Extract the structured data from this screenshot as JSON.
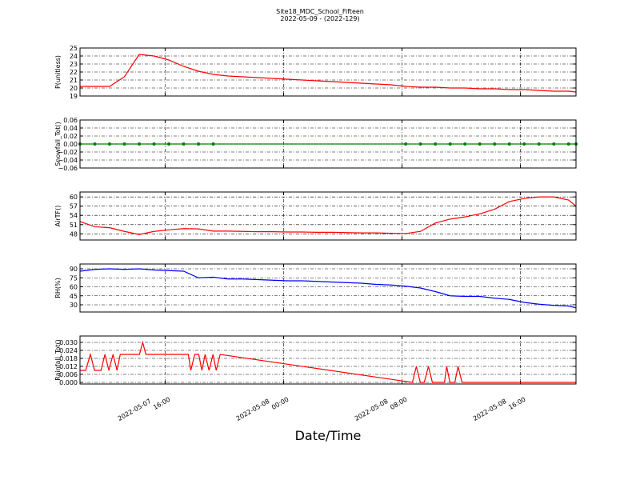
{
  "title": "Site18_MDC_School_Fifteen",
  "subtitle": "2022-05-09 - (2022-129)",
  "chart_data": [
    {
      "type": "line",
      "ylabel": "P(unitless)",
      "x": [
        "2022-05-07 10:15",
        "2022-05-07 11:15",
        "2022-05-07 12:15",
        "2022-05-07 13:15",
        "2022-05-07 14:15",
        "2022-05-07 15:15",
        "2022-05-07 16:15",
        "2022-05-07 17:15",
        "2022-05-07 18:15",
        "2022-05-07 19:15",
        "2022-05-07 20:15",
        "2022-05-07 21:15",
        "2022-05-07 22:15",
        "2022-05-07 23:15",
        "2022-05-08 00:15",
        "2022-05-08 01:15",
        "2022-05-08 02:15",
        "2022-05-08 03:15",
        "2022-05-08 04:15",
        "2022-05-08 05:15",
        "2022-05-08 06:15",
        "2022-05-08 07:15",
        "2022-05-08 08:15",
        "2022-05-08 09:15",
        "2022-05-08 10:15",
        "2022-05-08 11:15",
        "2022-05-08 12:15",
        "2022-05-08 13:15",
        "2022-05-08 14:15",
        "2022-05-08 15:15",
        "2022-05-08 16:15",
        "2022-05-08 17:15",
        "2022-05-08 18:15",
        "2022-05-08 19:15",
        "2022-05-08 19:45"
      ],
      "series": [
        {
          "color": "#ff0000",
          "values": [
            20.2,
            20.2,
            20.2,
            21.4,
            24.2,
            24.0,
            23.5,
            22.7,
            22.1,
            21.7,
            21.5,
            21.4,
            21.3,
            21.2,
            21.1,
            21.0,
            20.9,
            20.8,
            20.7,
            20.6,
            20.5,
            20.4,
            20.2,
            20.1,
            20.1,
            20.0,
            20.0,
            19.9,
            19.9,
            19.8,
            19.8,
            19.7,
            19.6,
            19.6,
            19.5
          ]
        }
      ],
      "xlim": [
        "2022-05-07 10:15",
        "2022-05-08 19:45"
      ],
      "xticks": [
        "2022-05-07 16:00",
        "2022-05-08 00:00",
        "2022-05-08 08:00",
        "2022-05-08 16:00"
      ],
      "ylim": [
        19,
        25
      ],
      "yticks": [
        19,
        20,
        21,
        22,
        23,
        24,
        25
      ],
      "grid": true
    },
    {
      "type": "line",
      "ylabel": "Snowfall_Tot()",
      "x": [
        "2022-05-07 10:15",
        "2022-05-07 11:15",
        "2022-05-07 12:15",
        "2022-05-07 13:15",
        "2022-05-07 14:15",
        "2022-05-07 15:15",
        "2022-05-07 16:15",
        "2022-05-07 17:15",
        "2022-05-07 18:15",
        "2022-05-07 19:15",
        "2022-05-08 08:15",
        "2022-05-08 09:15",
        "2022-05-08 10:15",
        "2022-05-08 11:15",
        "2022-05-08 12:15",
        "2022-05-08 13:15",
        "2022-05-08 14:15",
        "2022-05-08 15:15",
        "2022-05-08 16:15",
        "2022-05-08 17:15",
        "2022-05-08 18:15",
        "2022-05-08 19:15",
        "2022-05-08 19:45"
      ],
      "series": [
        {
          "color": "#008000",
          "marker": true,
          "values": [
            0,
            0,
            0,
            0,
            0,
            0,
            0,
            0,
            0,
            0,
            0,
            0,
            0,
            0,
            0,
            0,
            0,
            0,
            0,
            0,
            0,
            0,
            0
          ]
        }
      ],
      "xlim": [
        "2022-05-07 10:15",
        "2022-05-08 19:45"
      ],
      "xticks": [
        "2022-05-07 16:00",
        "2022-05-08 00:00",
        "2022-05-08 08:00",
        "2022-05-08 16:00"
      ],
      "ylim": [
        -0.06,
        0.06
      ],
      "yticks": [
        {
          "value": -0.06,
          "label": "−0.06"
        },
        {
          "value": -0.04,
          "label": "−0.04"
        },
        {
          "value": -0.02,
          "label": "−0.02"
        },
        {
          "value": 0,
          "label": "0.00"
        },
        {
          "value": 0.02,
          "label": "0.02"
        },
        {
          "value": 0.04,
          "label": "0.04"
        },
        {
          "value": 0.06,
          "label": "0.06"
        }
      ],
      "grid": true
    },
    {
      "type": "line",
      "ylabel": "AirTF()",
      "x": [
        "2022-05-07 10:15",
        "2022-05-07 11:15",
        "2022-05-07 12:15",
        "2022-05-07 13:15",
        "2022-05-07 14:15",
        "2022-05-07 15:15",
        "2022-05-07 16:15",
        "2022-05-07 17:15",
        "2022-05-07 18:15",
        "2022-05-07 19:15",
        "2022-05-07 20:15",
        "2022-05-07 21:15",
        "2022-05-07 22:15",
        "2022-05-07 23:15",
        "2022-05-08 00:15",
        "2022-05-08 01:15",
        "2022-05-08 02:15",
        "2022-05-08 03:15",
        "2022-05-08 04:15",
        "2022-05-08 05:15",
        "2022-05-08 06:15",
        "2022-05-08 07:15",
        "2022-05-08 08:15",
        "2022-05-08 09:15",
        "2022-05-08 10:15",
        "2022-05-08 11:15",
        "2022-05-08 12:15",
        "2022-05-08 13:15",
        "2022-05-08 14:15",
        "2022-05-08 15:15",
        "2022-05-08 16:15",
        "2022-05-08 17:15",
        "2022-05-08 18:15",
        "2022-05-08 19:15",
        "2022-05-08 19:45"
      ],
      "series": [
        {
          "color": "#ff0000",
          "values": [
            52,
            50.3,
            50.0,
            48.8,
            47.8,
            48.8,
            49.3,
            49.7,
            49.6,
            48.9,
            48.9,
            48.8,
            48.7,
            48.7,
            48.6,
            48.6,
            48.5,
            48.5,
            48.4,
            48.3,
            48.3,
            48.2,
            48.1,
            48.8,
            51.5,
            52.8,
            53.5,
            54.5,
            56.0,
            58.5,
            59.5,
            60.0,
            60.0,
            59.0,
            57.0
          ]
        }
      ],
      "xlim": [
        "2022-05-07 10:15",
        "2022-05-08 19:45"
      ],
      "xticks": [
        "2022-05-07 16:00",
        "2022-05-08 00:00",
        "2022-05-08 08:00",
        "2022-05-08 16:00"
      ],
      "ylim": [
        46,
        61.6
      ],
      "yticks": [
        48,
        51,
        54,
        57,
        60
      ],
      "grid": true
    },
    {
      "type": "line",
      "ylabel": "RH(%)",
      "x": [
        "2022-05-07 10:15",
        "2022-05-07 11:15",
        "2022-05-07 12:15",
        "2022-05-07 13:15",
        "2022-05-07 14:15",
        "2022-05-07 15:15",
        "2022-05-07 16:15",
        "2022-05-07 17:15",
        "2022-05-07 18:15",
        "2022-05-07 19:15",
        "2022-05-07 20:15",
        "2022-05-07 21:15",
        "2022-05-07 22:15",
        "2022-05-07 23:15",
        "2022-05-08 00:15",
        "2022-05-08 01:15",
        "2022-05-08 02:15",
        "2022-05-08 03:15",
        "2022-05-08 04:15",
        "2022-05-08 05:15",
        "2022-05-08 06:15",
        "2022-05-08 07:15",
        "2022-05-08 08:15",
        "2022-05-08 09:15",
        "2022-05-08 10:15",
        "2022-05-08 11:15",
        "2022-05-08 12:15",
        "2022-05-08 13:15",
        "2022-05-08 14:15",
        "2022-05-08 15:15",
        "2022-05-08 16:15",
        "2022-05-08 17:15",
        "2022-05-08 18:15",
        "2022-05-08 19:15",
        "2022-05-08 19:45"
      ],
      "series": [
        {
          "color": "#0000ff",
          "values": [
            86,
            89,
            90,
            89,
            90,
            88,
            87,
            86,
            75,
            76,
            73,
            73,
            72,
            71,
            70,
            70,
            69,
            68,
            67,
            66,
            64,
            63,
            61,
            58,
            52,
            45,
            44,
            44,
            41,
            39,
            34,
            31,
            29,
            28,
            25
          ]
        }
      ],
      "xlim": [
        "2022-05-07 10:15",
        "2022-05-08 19:45"
      ],
      "xticks": [
        "2022-05-07 16:00",
        "2022-05-08 00:00",
        "2022-05-08 08:00",
        "2022-05-08 16:00"
      ],
      "ylim": [
        18,
        98
      ],
      "yticks": [
        30,
        45,
        60,
        75,
        90
      ],
      "grid": true
    },
    {
      "type": "line",
      "ylabel": "Rainfall_Tot()",
      "xlabel": "Date/Time",
      "x": [
        "2022-05-07 10:15",
        "2022-05-07 10:38",
        "2022-05-07 10:57",
        "2022-05-07 11:14",
        "2022-05-07 11:40",
        "2022-05-07 11:56",
        "2022-05-07 12:12",
        "2022-05-07 12:29",
        "2022-05-07 12:45",
        "2022-05-07 12:58",
        "2022-05-07 14:16",
        "2022-05-07 14:29",
        "2022-05-07 14:42",
        "2022-05-07 17:34",
        "2022-05-07 17:44",
        "2022-05-07 18:00",
        "2022-05-07 18:16",
        "2022-05-07 18:29",
        "2022-05-07 18:42",
        "2022-05-07 18:58",
        "2022-05-07 19:14",
        "2022-05-07 19:27",
        "2022-05-07 19:43",
        "2022-05-08 08:42",
        "2022-05-08 08:58",
        "2022-05-08 09:14",
        "2022-05-08 09:30",
        "2022-05-08 09:47",
        "2022-05-08 10:03",
        "2022-05-08 10:52",
        "2022-05-08 11:01",
        "2022-05-08 11:14",
        "2022-05-08 11:34",
        "2022-05-08 11:47",
        "2022-05-08 12:03",
        "2022-05-08 19:45"
      ],
      "series": [
        {
          "color": "#ff0000",
          "values": [
            0.009,
            0.009,
            0.021,
            0.009,
            0.009,
            0.021,
            0.009,
            0.021,
            0.009,
            0.021,
            0.021,
            0.03,
            0.021,
            0.021,
            0.009,
            0.021,
            0.021,
            0.009,
            0.021,
            0.009,
            0.021,
            0.009,
            0.021,
            0,
            0.012,
            0,
            0,
            0.012,
            0,
            0,
            0.012,
            0,
            0,
            0.012,
            0,
            0
          ]
        }
      ],
      "xlim": [
        "2022-05-07 10:15",
        "2022-05-08 19:45"
      ],
      "xticks": [
        "2022-05-07 16:00",
        "2022-05-08 00:00",
        "2022-05-08 08:00",
        "2022-05-08 16:00"
      ],
      "ylim": [
        -0.0012,
        0.0348
      ],
      "yticks": [
        {
          "value": 0,
          "label": "0.000"
        },
        {
          "value": 0.006,
          "label": "0.006"
        },
        {
          "value": 0.012,
          "label": "0.012"
        },
        {
          "value": 0.018,
          "label": "0.018"
        },
        {
          "value": 0.024,
          "label": "0.024"
        },
        {
          "value": 0.03,
          "label": "0.030"
        }
      ],
      "grid": true
    }
  ]
}
